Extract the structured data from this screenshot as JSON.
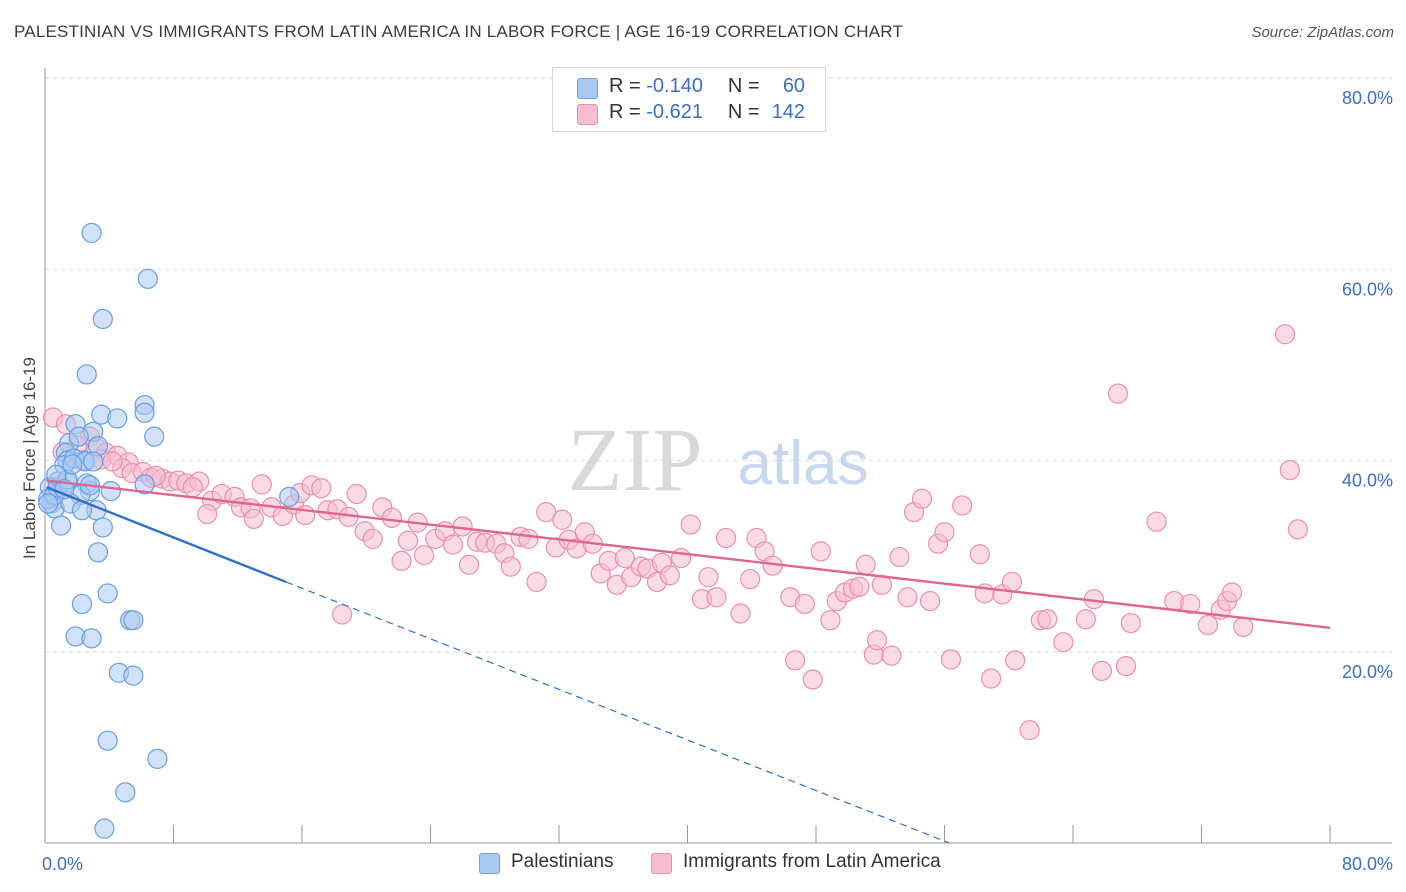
{
  "header": {
    "title": "PALESTINIAN VS IMMIGRANTS FROM LATIN AMERICA IN LABOR FORCE | AGE 16-19 CORRELATION CHART",
    "source": "Source: ZipAtlas.com"
  },
  "watermark": {
    "zip": "ZIP",
    "atlas": "atlas"
  },
  "legend": {
    "r_label": "R =",
    "n_label": "N =",
    "series": [
      {
        "name": "Palestinians",
        "r": "-0.140",
        "n": "60",
        "fill": "#a9c8f2",
        "stroke": "#6a9fe0"
      },
      {
        "name": "Immigrants from Latin America",
        "r": "-0.621",
        "n": "142",
        "fill": "#f6bdd0",
        "stroke": "#ea8fae"
      }
    ]
  },
  "colors": {
    "blue_point_fill": "#a9c8f2",
    "blue_point_stroke": "#6a9fe0",
    "blue_line": "#2e6fd0",
    "pink_point_fill": "#f6bdd0",
    "pink_point_stroke": "#ea8fae",
    "pink_line": "#e06590",
    "grid": "#dcdcdc",
    "axis_tick_label": "#3b6fc4"
  },
  "chart_data": {
    "type": "scatter",
    "title": "PALESTINIAN VS IMMIGRANTS FROM LATIN AMERICA IN LABOR FORCE | AGE 16-19 CORRELATION CHART",
    "xlabel": "",
    "ylabel": "In Labor Force | Age 16-19",
    "xlim": [
      0,
      80
    ],
    "ylim": [
      0,
      80
    ],
    "x_tick_labels": [
      "0.0%",
      "80.0%"
    ],
    "y_ticks": [
      {
        "value": 80,
        "label": "80.0%"
      },
      {
        "value": 60,
        "label": "60.0%"
      },
      {
        "value": 40,
        "label": "40.0%"
      },
      {
        "value": 20,
        "label": "20.0%"
      }
    ],
    "grid": true,
    "legend_position": "top-center",
    "series": [
      {
        "name": "Palestinians",
        "r": -0.14,
        "n": 60,
        "trend_solid": [
          [
            0.1,
            37.2
          ],
          [
            15.0,
            27.3
          ]
        ],
        "trend_dashed": [
          [
            15.0,
            27.3
          ],
          [
            56.3,
            0
          ]
        ],
        "points": [
          [
            2.9,
            63.8
          ],
          [
            6.4,
            59.0
          ],
          [
            3.6,
            54.8
          ],
          [
            2.6,
            49.0
          ],
          [
            6.2,
            45.8
          ],
          [
            6.2,
            45.0
          ],
          [
            3.5,
            44.8
          ],
          [
            4.5,
            44.4
          ],
          [
            1.9,
            43.8
          ],
          [
            6.8,
            42.5
          ],
          [
            3.0,
            43.0
          ],
          [
            1.5,
            41.8
          ],
          [
            2.1,
            42.5
          ],
          [
            3.3,
            41.5
          ],
          [
            1.3,
            40.8
          ],
          [
            1.4,
            40.0
          ],
          [
            2.4,
            40.0
          ],
          [
            1.2,
            39.5
          ],
          [
            0.8,
            37.8
          ],
          [
            2.6,
            37.6
          ],
          [
            0.3,
            37.2
          ],
          [
            1.4,
            37.7
          ],
          [
            2.8,
            36.8
          ],
          [
            4.1,
            36.8
          ],
          [
            6.2,
            37.5
          ],
          [
            0.5,
            36.2
          ],
          [
            0.4,
            35.5
          ],
          [
            2.2,
            36.4
          ],
          [
            15.2,
            36.2
          ],
          [
            0.6,
            35.0
          ],
          [
            1.6,
            35.5
          ],
          [
            3.2,
            34.8
          ],
          [
            1.0,
            33.2
          ],
          [
            3.6,
            33.0
          ],
          [
            0.2,
            36.0
          ],
          [
            0.6,
            36.4
          ],
          [
            2.3,
            34.8
          ],
          [
            0.8,
            37.2
          ],
          [
            1.4,
            38.0
          ],
          [
            1.8,
            40.2
          ],
          [
            3.3,
            30.4
          ],
          [
            0.2,
            35.5
          ],
          [
            3.9,
            26.1
          ],
          [
            2.3,
            25.0
          ],
          [
            5.3,
            23.3
          ],
          [
            5.5,
            23.3
          ],
          [
            1.9,
            21.6
          ],
          [
            2.9,
            21.4
          ],
          [
            4.6,
            17.8
          ],
          [
            5.5,
            17.5
          ],
          [
            3.9,
            10.7
          ],
          [
            7.0,
            8.8
          ],
          [
            5.0,
            5.3
          ],
          [
            3.7,
            1.5
          ],
          [
            0.7,
            38.5
          ],
          [
            2.5,
            39.9
          ],
          [
            1.7,
            39.6
          ],
          [
            3.0,
            39.9
          ],
          [
            1.2,
            37.0
          ],
          [
            2.8,
            37.4
          ]
        ]
      },
      {
        "name": "Immigrants from Latin America",
        "r": -0.621,
        "n": 142,
        "trend_solid": [
          [
            0.1,
            37.9
          ],
          [
            80.0,
            22.5
          ]
        ],
        "points": [
          [
            0.5,
            44.5
          ],
          [
            1.3,
            43.8
          ],
          [
            2.8,
            42.5
          ],
          [
            3.2,
            41.3
          ],
          [
            3.8,
            40.8
          ],
          [
            4.5,
            40.5
          ],
          [
            5.2,
            39.8
          ],
          [
            4.8,
            39.2
          ],
          [
            5.4,
            38.7
          ],
          [
            6.1,
            38.8
          ],
          [
            6.6,
            38.2
          ],
          [
            7.3,
            38.1
          ],
          [
            7.8,
            37.8
          ],
          [
            8.3,
            37.9
          ],
          [
            8.8,
            37.6
          ],
          [
            9.6,
            37.8
          ],
          [
            10.4,
            35.8
          ],
          [
            11.0,
            36.5
          ],
          [
            11.8,
            36.2
          ],
          [
            12.2,
            35.1
          ],
          [
            12.8,
            35.0
          ],
          [
            13.5,
            37.5
          ],
          [
            14.1,
            35.1
          ],
          [
            14.8,
            34.2
          ],
          [
            15.5,
            35.4
          ],
          [
            15.9,
            36.6
          ],
          [
            16.6,
            37.4
          ],
          [
            17.2,
            37.1
          ],
          [
            17.6,
            34.8
          ],
          [
            18.2,
            34.9
          ],
          [
            18.9,
            34.1
          ],
          [
            19.4,
            36.5
          ],
          [
            19.9,
            32.6
          ],
          [
            20.4,
            31.8
          ],
          [
            21.0,
            35.1
          ],
          [
            21.6,
            34.0
          ],
          [
            22.2,
            29.5
          ],
          [
            22.6,
            31.6
          ],
          [
            23.2,
            33.5
          ],
          [
            23.6,
            30.1
          ],
          [
            24.3,
            31.8
          ],
          [
            24.9,
            32.6
          ],
          [
            25.4,
            31.2
          ],
          [
            26.0,
            33.1
          ],
          [
            26.4,
            29.1
          ],
          [
            26.9,
            31.5
          ],
          [
            27.4,
            31.4
          ],
          [
            28.1,
            31.3
          ],
          [
            28.6,
            30.3
          ],
          [
            29.0,
            28.9
          ],
          [
            29.6,
            32.0
          ],
          [
            30.1,
            31.8
          ],
          [
            30.6,
            27.3
          ],
          [
            31.2,
            34.6
          ],
          [
            31.8,
            30.9
          ],
          [
            32.2,
            33.8
          ],
          [
            32.6,
            31.7
          ],
          [
            33.1,
            30.8
          ],
          [
            33.6,
            32.5
          ],
          [
            34.1,
            31.3
          ],
          [
            34.6,
            28.2
          ],
          [
            35.1,
            29.5
          ],
          [
            35.6,
            27.0
          ],
          [
            36.1,
            29.8
          ],
          [
            36.5,
            27.8
          ],
          [
            37.1,
            28.9
          ],
          [
            37.5,
            28.7
          ],
          [
            38.1,
            27.3
          ],
          [
            38.4,
            29.3
          ],
          [
            38.9,
            28.0
          ],
          [
            39.6,
            29.8
          ],
          [
            40.2,
            33.3
          ],
          [
            40.9,
            25.5
          ],
          [
            41.3,
            27.8
          ],
          [
            41.8,
            25.7
          ],
          [
            42.4,
            31.9
          ],
          [
            43.3,
            24.0
          ],
          [
            43.9,
            27.6
          ],
          [
            44.3,
            31.9
          ],
          [
            44.8,
            30.5
          ],
          [
            45.3,
            29.0
          ],
          [
            46.4,
            25.7
          ],
          [
            46.7,
            19.1
          ],
          [
            47.3,
            25.0
          ],
          [
            47.8,
            17.1
          ],
          [
            48.3,
            30.5
          ],
          [
            48.9,
            23.3
          ],
          [
            49.3,
            25.3
          ],
          [
            49.8,
            26.2
          ],
          [
            50.3,
            26.6
          ],
          [
            50.7,
            26.8
          ],
          [
            51.1,
            29.1
          ],
          [
            51.6,
            19.7
          ],
          [
            51.8,
            21.2
          ],
          [
            52.1,
            27.0
          ],
          [
            52.7,
            19.6
          ],
          [
            53.2,
            29.9
          ],
          [
            53.7,
            25.7
          ],
          [
            54.1,
            34.6
          ],
          [
            54.6,
            36.0
          ],
          [
            55.1,
            25.3
          ],
          [
            55.6,
            31.3
          ],
          [
            56.0,
            32.5
          ],
          [
            56.4,
            19.2
          ],
          [
            57.1,
            35.3
          ],
          [
            58.2,
            30.2
          ],
          [
            58.5,
            26.1
          ],
          [
            58.9,
            17.2
          ],
          [
            59.6,
            26.0
          ],
          [
            60.2,
            27.3
          ],
          [
            60.4,
            19.1
          ],
          [
            61.3,
            11.8
          ],
          [
            62.0,
            23.3
          ],
          [
            62.4,
            23.4
          ],
          [
            63.4,
            21.0
          ],
          [
            64.8,
            23.4
          ],
          [
            65.3,
            25.5
          ],
          [
            65.8,
            18.0
          ],
          [
            66.8,
            47.0
          ],
          [
            67.3,
            18.5
          ],
          [
            67.6,
            23.0
          ],
          [
            69.2,
            33.6
          ],
          [
            70.3,
            25.3
          ],
          [
            71.3,
            25.0
          ],
          [
            72.4,
            22.8
          ],
          [
            73.2,
            24.4
          ],
          [
            73.6,
            25.3
          ],
          [
            73.9,
            26.2
          ],
          [
            74.6,
            22.6
          ],
          [
            77.2,
            53.2
          ],
          [
            77.5,
            39.0
          ],
          [
            78.0,
            32.8
          ],
          [
            1.1,
            40.9
          ],
          [
            2.0,
            41.6
          ],
          [
            3.5,
            40.1
          ],
          [
            4.2,
            39.9
          ],
          [
            6.9,
            38.4
          ],
          [
            9.2,
            37.2
          ],
          [
            10.1,
            34.4
          ],
          [
            13.0,
            33.9
          ],
          [
            16.2,
            34.3
          ],
          [
            18.5,
            23.9
          ]
        ]
      }
    ]
  }
}
